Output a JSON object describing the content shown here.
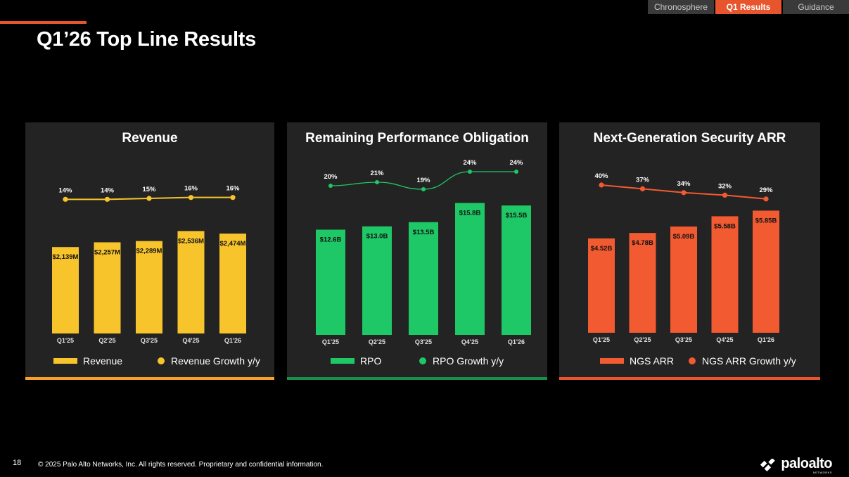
{
  "title": "Q1’26 Top Line Results",
  "tabs": [
    {
      "label": "Chronosphere",
      "active": false
    },
    {
      "label": "Q1 Results",
      "active": true
    },
    {
      "label": "Guidance",
      "active": false
    }
  ],
  "colors": {
    "accent": "#e8552d",
    "revenue": "#f7c52b",
    "rpo": "#1fc866",
    "ngs": "#f25a31",
    "panel_bg": "#232323"
  },
  "chart_data": [
    {
      "type": "bar",
      "title": "Revenue",
      "categories": [
        "Q1'25",
        "Q2'25",
        "Q3'25",
        "Q4'25",
        "Q1'26"
      ],
      "series": [
        {
          "name": "Revenue",
          "values": [
            2139,
            2257,
            2289,
            2536,
            2474
          ],
          "labels": [
            "$2,139M",
            "$2,257M",
            "$2,289M",
            "$2,536M",
            "$2,474M"
          ]
        },
        {
          "name": "Revenue Growth y/y",
          "type": "line",
          "values": [
            14,
            14,
            15,
            16,
            16
          ],
          "labels": [
            "14%",
            "14%",
            "15%",
            "16%",
            "16%"
          ]
        }
      ]
    },
    {
      "type": "bar",
      "title": "Remaining Performance Obligation",
      "categories": [
        "Q1'25",
        "Q2'25",
        "Q3'25",
        "Q4'25",
        "Q1'26"
      ],
      "series": [
        {
          "name": "RPO",
          "values": [
            12.6,
            13.0,
            13.5,
            15.8,
            15.5
          ],
          "labels": [
            "$12.6B",
            "$13.0B",
            "$13.5B",
            "$15.8B",
            "$15.5B"
          ]
        },
        {
          "name": "RPO Growth y/y",
          "type": "line",
          "values": [
            20,
            21,
            19,
            24,
            24
          ],
          "labels": [
            "20%",
            "21%",
            "19%",
            "24%",
            "24%"
          ]
        }
      ]
    },
    {
      "type": "bar",
      "title": "Next-Generation Security ARR",
      "categories": [
        "Q1'25",
        "Q2'25",
        "Q3'25",
        "Q4'25",
        "Q1'26"
      ],
      "series": [
        {
          "name": "NGS ARR",
          "values": [
            4.52,
            4.78,
            5.09,
            5.58,
            5.85
          ],
          "labels": [
            "$4.52B",
            "$4.78B",
            "$5.09B",
            "$5.58B",
            "$5.85B"
          ]
        },
        {
          "name": "NGS ARR Growth y/y",
          "type": "line",
          "values": [
            40,
            37,
            34,
            32,
            29
          ],
          "labels": [
            "40%",
            "37%",
            "34%",
            "32%",
            "29%"
          ]
        }
      ]
    }
  ],
  "footer": {
    "page_number": "18",
    "copyright": "© 2025 Palo Alto Networks, Inc. All rights reserved. Proprietary and confidential information.",
    "logo_text": "paloalto",
    "logo_subtext": "NETWORKS"
  }
}
